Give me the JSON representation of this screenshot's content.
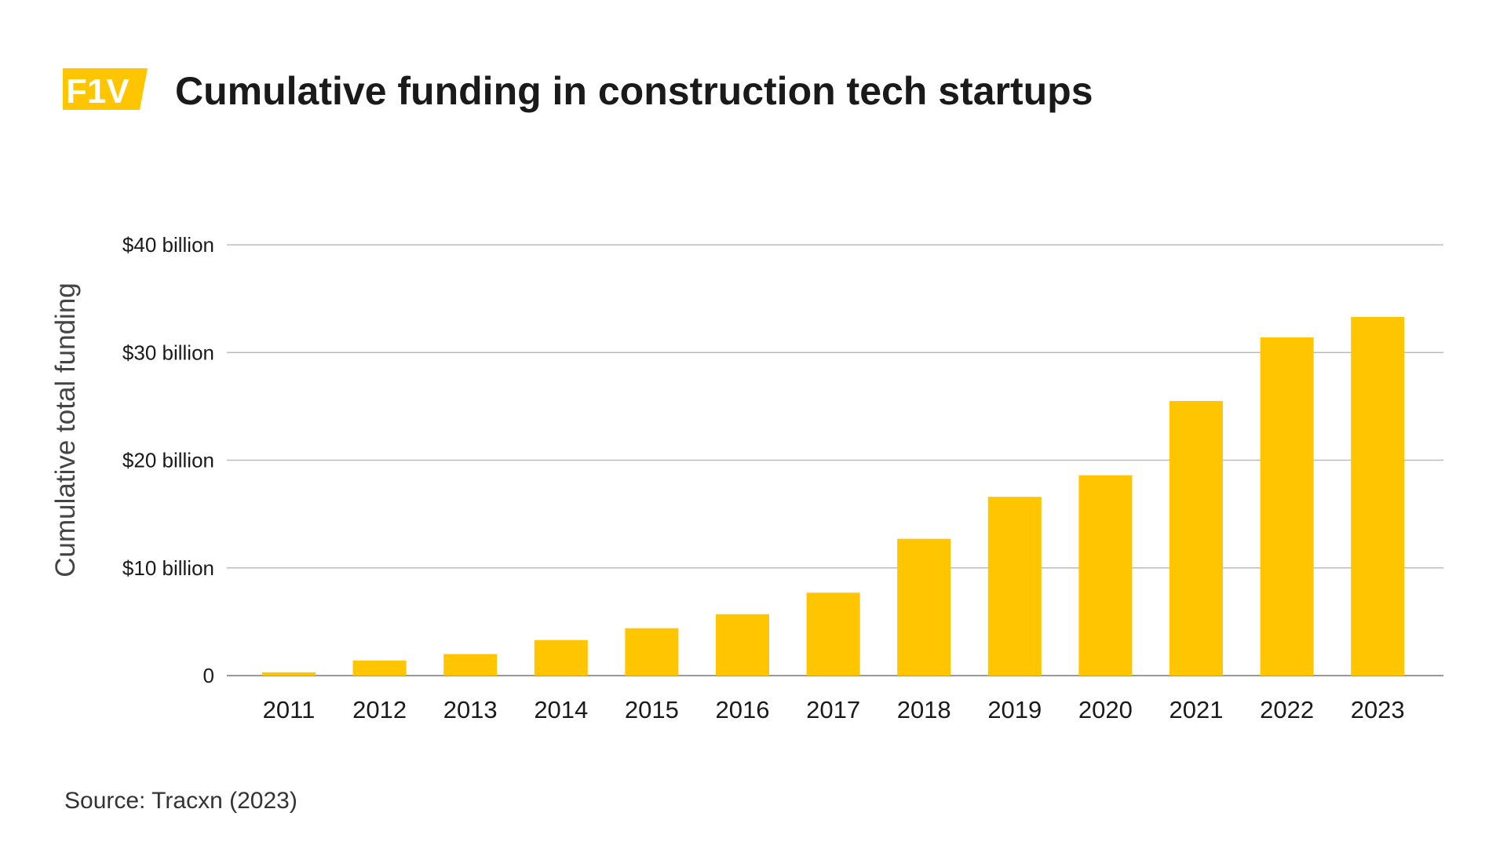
{
  "logo": {
    "text": "F1V",
    "color": "#FFC500"
  },
  "chart_data": {
    "type": "bar",
    "title": "Cumulative funding in construction tech startups",
    "xlabel": "",
    "ylabel": "Cumulative total funding",
    "categories": [
      "2011",
      "2012",
      "2013",
      "2014",
      "2015",
      "2016",
      "2017",
      "2018",
      "2019",
      "2020",
      "2021",
      "2022",
      "2023"
    ],
    "values": [
      0.3,
      1.4,
      2.0,
      3.3,
      4.4,
      5.7,
      7.7,
      12.7,
      16.6,
      18.6,
      25.5,
      31.4,
      33.3
    ],
    "unit": "billion USD",
    "ylim": [
      0,
      40
    ],
    "yticks": [
      0,
      10,
      20,
      30,
      40
    ],
    "ytick_labels": [
      "0",
      "$10 billion",
      "$20 billion",
      "$30 billion",
      "$40 billion"
    ],
    "grid": true,
    "bar_color": "#FFC500",
    "source": "Source: Tracxn (2023)"
  }
}
